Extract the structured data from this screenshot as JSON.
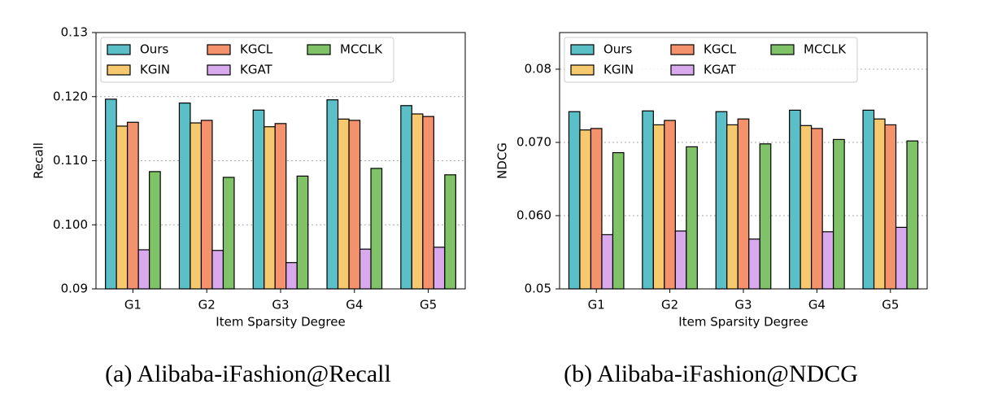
{
  "chart_data": [
    {
      "type": "bar",
      "caption": "(a) Alibaba-iFashion@Recall",
      "xlabel": "Item Sparsity Degree",
      "ylabel": "Recall",
      "categories": [
        "G1",
        "G2",
        "G3",
        "G4",
        "G5"
      ],
      "series": [
        {
          "name": "Ours",
          "color": "#5bbfc8",
          "values": [
            0.1196,
            0.119,
            0.1179,
            0.1195,
            0.1186
          ]
        },
        {
          "name": "KGIN",
          "color": "#f6c96e",
          "values": [
            0.1154,
            0.1159,
            0.1153,
            0.1165,
            0.1173
          ]
        },
        {
          "name": "KGCL",
          "color": "#f3926d",
          "values": [
            0.116,
            0.1163,
            0.1158,
            0.1163,
            0.1169
          ]
        },
        {
          "name": "KGAT",
          "color": "#d9a9ee",
          "values": [
            0.0961,
            0.096,
            0.0941,
            0.0962,
            0.0965
          ]
        },
        {
          "name": "MCCLK",
          "color": "#80c267",
          "values": [
            0.1083,
            0.1074,
            0.1076,
            0.1088,
            0.1078
          ]
        }
      ],
      "ylim": [
        0.09,
        0.13
      ],
      "yticks": [
        0.09,
        {
          "value": 0.1,
          "label": "0.100"
        },
        {
          "value": 0.11,
          "label": "0.110"
        },
        {
          "value": 0.12,
          "label": "0.120"
        },
        0.13
      ],
      "grid": true,
      "legend": "upper left"
    },
    {
      "type": "bar",
      "caption": "(b) Alibaba-iFashion@NDCG",
      "xlabel": "Item Sparsity Degree",
      "ylabel": "NDCG",
      "categories": [
        "G1",
        "G2",
        "G3",
        "G4",
        "G5"
      ],
      "series": [
        {
          "name": "Ours",
          "color": "#5bbfc8",
          "values": [
            0.0742,
            0.0743,
            0.0742,
            0.0744,
            0.0744
          ]
        },
        {
          "name": "KGIN",
          "color": "#f6c96e",
          "values": [
            0.0717,
            0.0724,
            0.0724,
            0.0723,
            0.0732
          ]
        },
        {
          "name": "KGCL",
          "color": "#f3926d",
          "values": [
            0.0719,
            0.073,
            0.0732,
            0.0719,
            0.0724
          ]
        },
        {
          "name": "KGAT",
          "color": "#d9a9ee",
          "values": [
            0.0574,
            0.0579,
            0.0568,
            0.0578,
            0.0584
          ]
        },
        {
          "name": "MCCLK",
          "color": "#80c267",
          "values": [
            0.0686,
            0.0694,
            0.0698,
            0.0704,
            0.0702
          ]
        }
      ],
      "ylim": [
        0.05,
        0.085
      ],
      "yticks": [
        0.05,
        {
          "value": 0.06,
          "label": "0.060"
        },
        {
          "value": 0.07,
          "label": "0.070"
        },
        0.08
      ],
      "grid": true,
      "legend": "upper left"
    }
  ]
}
